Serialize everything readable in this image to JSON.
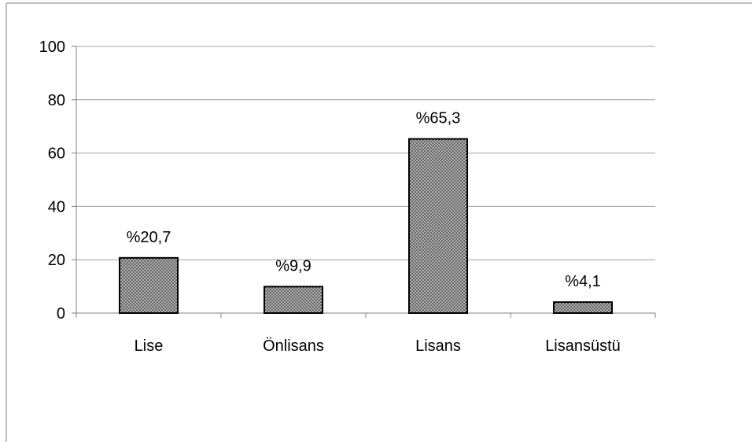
{
  "chart_data": {
    "type": "bar",
    "categories": [
      "Lise",
      "Önlisans",
      "Lisans",
      "Lisansüstü"
    ],
    "values": [
      20.7,
      9.9,
      65.3,
      4.1
    ],
    "data_labels": [
      "%20,7",
      "%9,9",
      "%65,3",
      "%4,1"
    ],
    "y_ticks": [
      "0",
      "20",
      "40",
      "60",
      "80",
      "100"
    ],
    "y_tick_values": [
      0,
      20,
      40,
      60,
      80,
      100
    ],
    "ylim": [
      0,
      100
    ],
    "grid": true,
    "legend": "none",
    "colors": {
      "bar_fill_base": "#c8c8c8",
      "bar_pattern": "#555555",
      "bar_stroke": "#000000",
      "grid": "#a0a0a0",
      "axis": "#808080",
      "frame": "#808080"
    }
  }
}
